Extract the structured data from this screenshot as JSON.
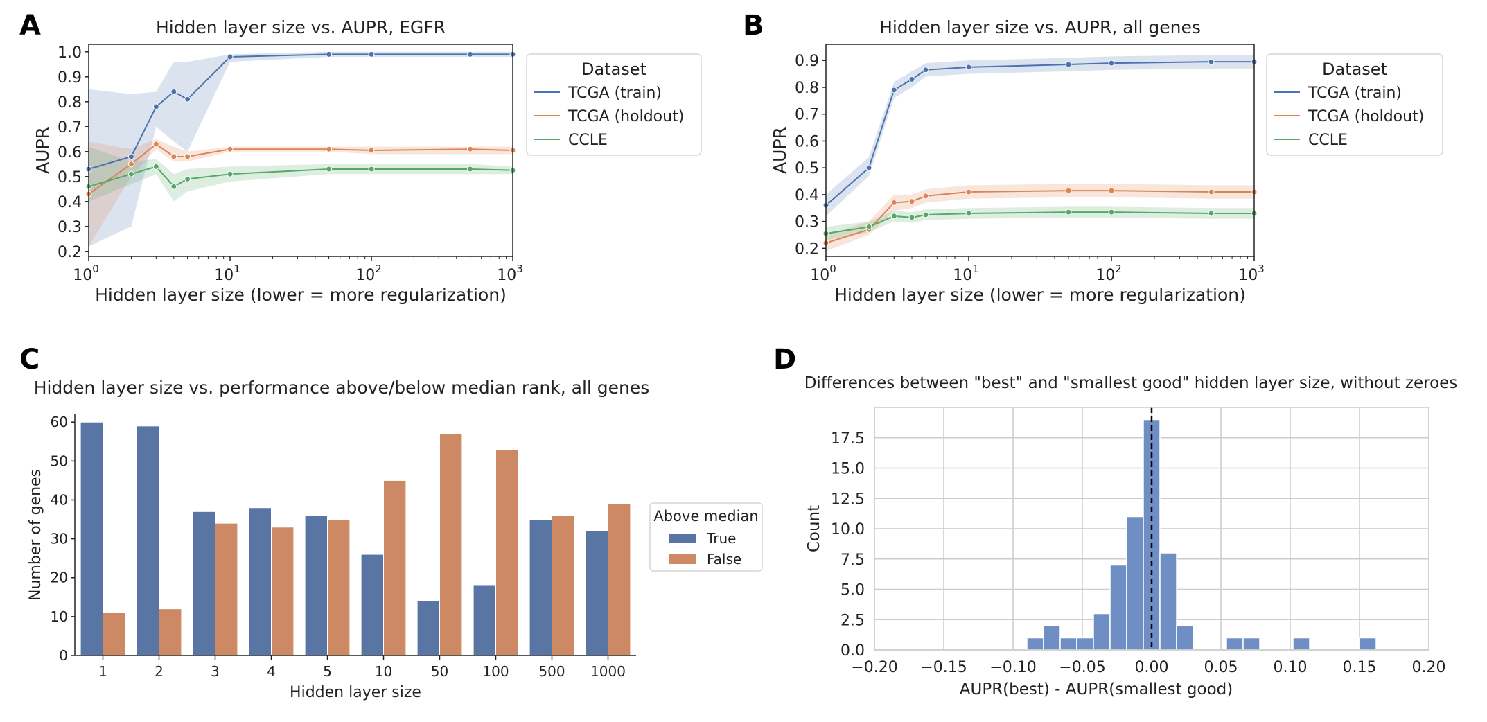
{
  "colors": {
    "blue": "#4c72b0",
    "orange": "#dd8452",
    "green": "#55a868",
    "bar_blue": "#5875a4",
    "bar_orange": "#cc8963",
    "hist_fill": "#6f8ec4",
    "grid": "#cccccc"
  },
  "panels": {
    "A": {
      "letter": "A"
    },
    "B": {
      "letter": "B"
    },
    "C": {
      "letter": "C"
    },
    "D": {
      "letter": "D"
    }
  },
  "chart_data": [
    {
      "id": "A",
      "type": "line",
      "title": "Hidden layer size vs. AUPR, EGFR",
      "xlabel": "Hidden layer size (lower = more regularization)",
      "ylabel": "AUPR",
      "xscale": "log",
      "xlim": [
        1,
        1000
      ],
      "ylim": [
        0.18,
        1.03
      ],
      "yticks": [
        0.2,
        0.3,
        0.4,
        0.5,
        0.6,
        0.7,
        0.8,
        0.9,
        1.0
      ],
      "yticklabels": [
        "0.2",
        "0.3",
        "0.4",
        "0.5",
        "0.6",
        "0.7",
        "0.8",
        "0.9",
        "1.0"
      ],
      "xticks": [
        1,
        10,
        100,
        1000
      ],
      "xticklabels": [
        {
          "base": "10",
          "exp": "0"
        },
        {
          "base": "10",
          "exp": "1"
        },
        {
          "base": "10",
          "exp": "2"
        },
        {
          "base": "10",
          "exp": "3"
        }
      ],
      "legend": {
        "title": "Dataset",
        "placement": "outside-right"
      },
      "x": [
        1,
        2,
        3,
        4,
        5,
        10,
        50,
        100,
        500,
        1000
      ],
      "series": [
        {
          "name": "TCGA (train)",
          "color": "blue",
          "values": [
            0.53,
            0.58,
            0.78,
            0.84,
            0.81,
            0.98,
            0.99,
            0.99,
            0.99,
            0.99
          ],
          "lower": [
            0.22,
            0.3,
            0.7,
            0.64,
            0.6,
            0.96,
            0.98,
            0.98,
            0.98,
            0.98
          ],
          "upper": [
            0.85,
            0.83,
            0.84,
            0.96,
            0.96,
            0.99,
            1.0,
            1.0,
            1.0,
            1.0
          ]
        },
        {
          "name": "TCGA (holdout)",
          "color": "orange",
          "values": [
            0.43,
            0.55,
            0.63,
            0.58,
            0.58,
            0.61,
            0.61,
            0.605,
            0.61,
            0.605
          ],
          "lower": [
            0.22,
            0.5,
            0.61,
            0.56,
            0.56,
            0.6,
            0.6,
            0.59,
            0.59,
            0.59
          ],
          "upper": [
            0.64,
            0.61,
            0.65,
            0.62,
            0.6,
            0.62,
            0.62,
            0.62,
            0.62,
            0.62
          ]
        },
        {
          "name": "CCLE",
          "color": "green",
          "values": [
            0.46,
            0.51,
            0.54,
            0.46,
            0.49,
            0.51,
            0.53,
            0.53,
            0.53,
            0.525
          ],
          "lower": [
            0.4,
            0.47,
            0.51,
            0.4,
            0.44,
            0.48,
            0.51,
            0.51,
            0.51,
            0.51
          ],
          "upper": [
            0.62,
            0.56,
            0.57,
            0.51,
            0.53,
            0.54,
            0.55,
            0.55,
            0.55,
            0.54
          ]
        }
      ]
    },
    {
      "id": "B",
      "type": "line",
      "title": "Hidden layer size vs. AUPR, all genes",
      "xlabel": "Hidden layer size (lower = more regularization)",
      "ylabel": "AUPR",
      "xscale": "log",
      "xlim": [
        1,
        1000
      ],
      "ylim": [
        0.17,
        0.96
      ],
      "yticks": [
        0.2,
        0.3,
        0.4,
        0.5,
        0.6,
        0.7,
        0.8,
        0.9
      ],
      "yticklabels": [
        "0.2",
        "0.3",
        "0.4",
        "0.5",
        "0.6",
        "0.7",
        "0.8",
        "0.9"
      ],
      "xticks": [
        1,
        10,
        100,
        1000
      ],
      "xticklabels": [
        {
          "base": "10",
          "exp": "0"
        },
        {
          "base": "10",
          "exp": "1"
        },
        {
          "base": "10",
          "exp": "2"
        },
        {
          "base": "10",
          "exp": "3"
        }
      ],
      "legend": {
        "title": "Dataset",
        "placement": "outside-right"
      },
      "x": [
        1,
        2,
        3,
        4,
        5,
        10,
        50,
        100,
        500,
        1000
      ],
      "series": [
        {
          "name": "TCGA (train)",
          "color": "blue",
          "values": [
            0.36,
            0.5,
            0.79,
            0.83,
            0.865,
            0.875,
            0.885,
            0.89,
            0.895,
            0.895
          ],
          "lower": [
            0.32,
            0.47,
            0.76,
            0.8,
            0.84,
            0.85,
            0.86,
            0.865,
            0.87,
            0.87
          ],
          "upper": [
            0.4,
            0.54,
            0.82,
            0.86,
            0.89,
            0.9,
            0.91,
            0.915,
            0.92,
            0.92
          ]
        },
        {
          "name": "TCGA (holdout)",
          "color": "orange",
          "values": [
            0.22,
            0.27,
            0.37,
            0.375,
            0.395,
            0.41,
            0.415,
            0.415,
            0.41,
            0.41
          ],
          "lower": [
            0.19,
            0.25,
            0.34,
            0.35,
            0.37,
            0.385,
            0.39,
            0.39,
            0.385,
            0.385
          ],
          "upper": [
            0.25,
            0.3,
            0.4,
            0.4,
            0.42,
            0.435,
            0.44,
            0.44,
            0.435,
            0.435
          ]
        },
        {
          "name": "CCLE",
          "color": "green",
          "values": [
            0.255,
            0.28,
            0.32,
            0.315,
            0.325,
            0.33,
            0.335,
            0.335,
            0.33,
            0.33
          ],
          "lower": [
            0.23,
            0.26,
            0.3,
            0.295,
            0.305,
            0.31,
            0.315,
            0.315,
            0.31,
            0.31
          ],
          "upper": [
            0.28,
            0.3,
            0.34,
            0.335,
            0.345,
            0.35,
            0.355,
            0.355,
            0.35,
            0.35
          ]
        }
      ]
    },
    {
      "id": "C",
      "type": "bar",
      "title": "Hidden layer size vs. performance above/below median rank, all genes",
      "xlabel": "Hidden layer size",
      "ylabel": "Number of genes",
      "ylim": [
        0,
        62
      ],
      "yticks": [
        0,
        10,
        20,
        30,
        40,
        50,
        60
      ],
      "yticklabels": [
        "0",
        "10",
        "20",
        "30",
        "40",
        "50",
        "60"
      ],
      "categories": [
        "1",
        "2",
        "3",
        "4",
        "5",
        "10",
        "50",
        "100",
        "500",
        "1000"
      ],
      "legend": {
        "title": "Above median",
        "placement": "outside-right"
      },
      "series": [
        {
          "name": "True",
          "color": "bar_blue",
          "values": [
            60,
            59,
            37,
            38,
            36,
            26,
            14,
            18,
            35,
            32
          ]
        },
        {
          "name": "False",
          "color": "bar_orange",
          "values": [
            11,
            12,
            34,
            33,
            35,
            45,
            57,
            53,
            36,
            39
          ]
        }
      ]
    },
    {
      "id": "D",
      "type": "histogram",
      "title": "Differences between \"best\" and \"smallest good\" hidden layer size, without zeroes",
      "xlabel": "AUPR(best) - AUPR(smallest good)",
      "ylabel": "Count",
      "xlim": [
        -0.2,
        0.2
      ],
      "ylim": [
        0,
        20
      ],
      "grid": true,
      "xticks": [
        -0.2,
        -0.15,
        -0.1,
        -0.05,
        0.0,
        0.05,
        0.1,
        0.15,
        0.2
      ],
      "xticklabels": [
        "−0.20",
        "−0.15",
        "−0.10",
        "−0.05",
        "0.00",
        "0.05",
        "0.10",
        "0.15",
        "0.20"
      ],
      "yticks": [
        0,
        2.5,
        5,
        7.5,
        10,
        12.5,
        15,
        17.5
      ],
      "yticklabels": [
        "0.0",
        "2.5",
        "5.0",
        "7.5",
        "10.0",
        "12.5",
        "15.0",
        "17.5"
      ],
      "vline": 0.0,
      "bin_width": 0.012,
      "bins": [
        {
          "x0": -0.09,
          "count": 1
        },
        {
          "x0": -0.078,
          "count": 2
        },
        {
          "x0": -0.066,
          "count": 1
        },
        {
          "x0": -0.054,
          "count": 1
        },
        {
          "x0": -0.042,
          "count": 3
        },
        {
          "x0": -0.03,
          "count": 7
        },
        {
          "x0": -0.018,
          "count": 11
        },
        {
          "x0": -0.006,
          "count": 19
        },
        {
          "x0": 0.006,
          "count": 8
        },
        {
          "x0": 0.018,
          "count": 2
        },
        {
          "x0": 0.054,
          "count": 1
        },
        {
          "x0": 0.066,
          "count": 1
        },
        {
          "x0": 0.102,
          "count": 1
        },
        {
          "x0": 0.15,
          "count": 1
        }
      ]
    }
  ]
}
